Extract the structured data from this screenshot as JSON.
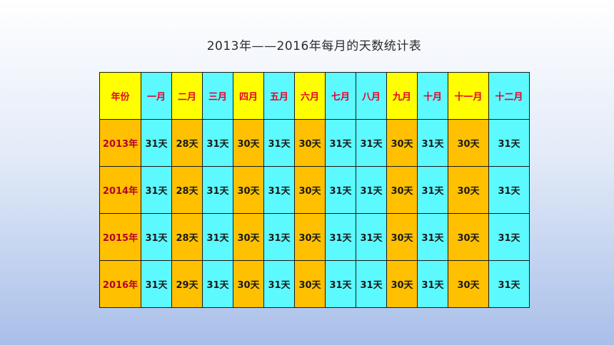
{
  "title": "2013年——2016年每月的天数统计表",
  "table": {
    "header": [
      "年份",
      "一月",
      "二月",
      "三月",
      "四月",
      "五月",
      "六月",
      "七月",
      "八月",
      "九月",
      "十月",
      "十一月",
      "十二月"
    ],
    "rows": [
      [
        "2013年",
        "31天",
        "28天",
        "31天",
        "30天",
        "31天",
        "30天",
        "31天",
        "31天",
        "30天",
        "31天",
        "30天",
        "31天"
      ],
      [
        "2014年",
        "31天",
        "28天",
        "31天",
        "30天",
        "31天",
        "30天",
        "31天",
        "31天",
        "30天",
        "31天",
        "30天",
        "31天"
      ],
      [
        "2015年",
        "31天",
        "28天",
        "31天",
        "30天",
        "31天",
        "30天",
        "31天",
        "31天",
        "30天",
        "31天",
        "30天",
        "31天"
      ],
      [
        "2016年",
        "31天",
        "29天",
        "31天",
        "30天",
        "31天",
        "30天",
        "31天",
        "31天",
        "30天",
        "31天",
        "30天",
        "31天"
      ]
    ]
  },
  "colors": {
    "header_short_month": "#ffff00",
    "data_short_month": "#ffc000",
    "long_month": "#5cf9ff",
    "header_text": "#e4002b"
  }
}
